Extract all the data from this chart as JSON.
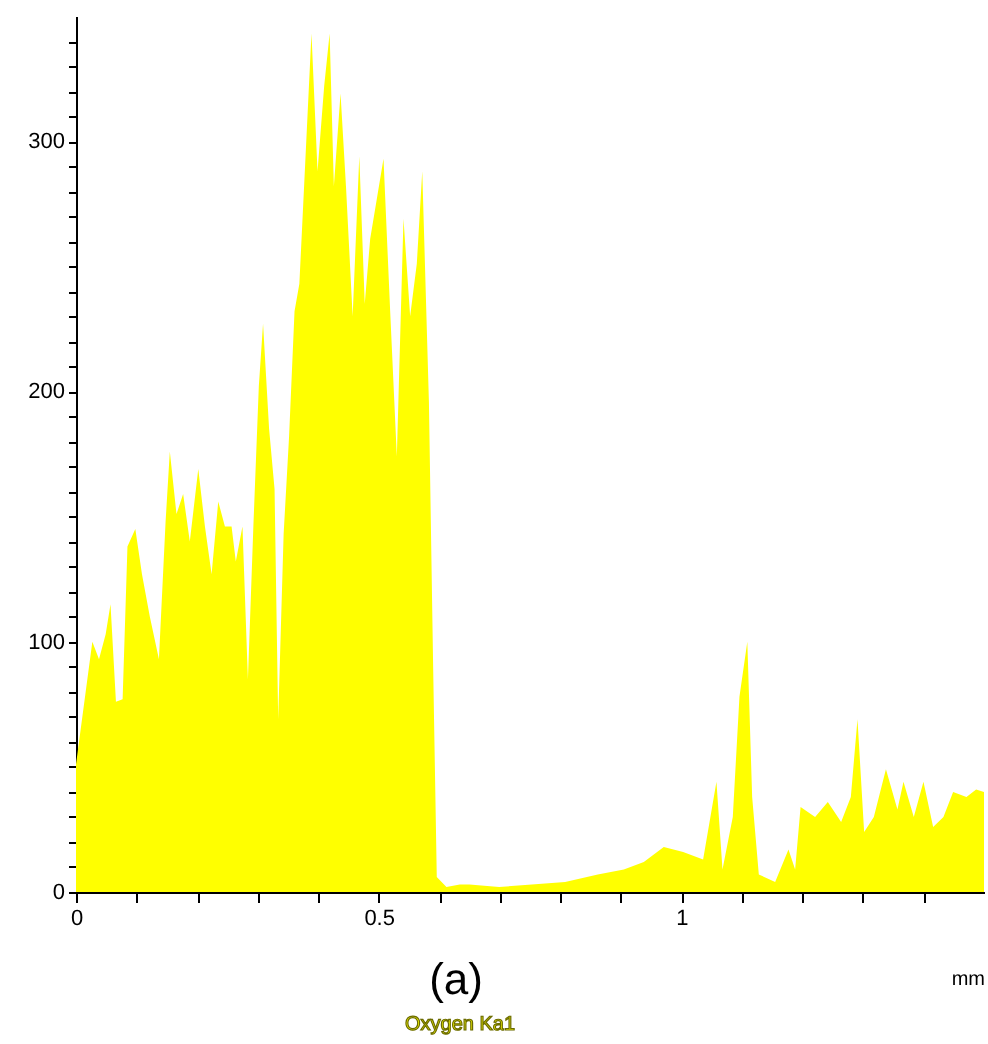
{
  "chart_data": {
    "type": "area",
    "xlabel": "mm",
    "annotations": [
      "(a)"
    ],
    "x": [
      0,
      0.016,
      0.027,
      0.038,
      0.049,
      0.057,
      0.066,
      0.077,
      0.085,
      0.098,
      0.109,
      0.122,
      0.137,
      0.148,
      0.155,
      0.166,
      0.177,
      0.188,
      0.202,
      0.213,
      0.224,
      0.235,
      0.246,
      0.257,
      0.264,
      0.275,
      0.284,
      0.293,
      0.302,
      0.309,
      0.319,
      0.328,
      0.334,
      0.343,
      0.352,
      0.361,
      0.369,
      0.38,
      0.389,
      0.399,
      0.41,
      0.419,
      0.426,
      0.437,
      0.446,
      0.457,
      0.468,
      0.477,
      0.486,
      0.497,
      0.508,
      0.519,
      0.53,
      0.541,
      0.552,
      0.563,
      0.572,
      0.583,
      0.59,
      0.596,
      0.612,
      0.634,
      0.65,
      0.699,
      0.753,
      0.808,
      0.862,
      0.905,
      0.938,
      0.971,
      1.003,
      1.036,
      1.058,
      1.068,
      1.085,
      1.096,
      1.109,
      1.117,
      1.128,
      1.155,
      1.177,
      1.188,
      1.197,
      1.221,
      1.242,
      1.264,
      1.28,
      1.291,
      1.302,
      1.318,
      1.338,
      1.357,
      1.367,
      1.384,
      1.4,
      1.416,
      1.433,
      1.449,
      1.471,
      1.487,
      1.5
    ],
    "series": [
      {
        "name": "Oxygen Ka1",
        "color": "#ffff00",
        "values": [
          51,
          80,
          100,
          93,
          103,
          115,
          76,
          77,
          138,
          145,
          127,
          110,
          93,
          148,
          176,
          151,
          159,
          140,
          169,
          146,
          127,
          156,
          146,
          146,
          132,
          146,
          85,
          146,
          202,
          227,
          185,
          161,
          69,
          143,
          182,
          232,
          243,
          298,
          343,
          288,
          322,
          343,
          282,
          319,
          282,
          230,
          294,
          235,
          261,
          277,
          293,
          232,
          174,
          269,
          230,
          251,
          288,
          196,
          90,
          6,
          2,
          3,
          3,
          2,
          3,
          4,
          7,
          9,
          12,
          18,
          16,
          13,
          44,
          9,
          30,
          78,
          100,
          38,
          7,
          4,
          17,
          9,
          34,
          30,
          36,
          28,
          38,
          69,
          24,
          30,
          49,
          33,
          44,
          30,
          44,
          26,
          30,
          40,
          38,
          41,
          40
        ]
      }
    ],
    "xlim": [
      0,
      1.5
    ],
    "ylim": [
      0,
      350
    ],
    "xticks": [
      0,
      {
        "value": 0.1,
        "label": null
      },
      {
        "value": 0.2,
        "label": null
      },
      {
        "value": 0.3,
        "label": null
      },
      {
        "value": 0.4,
        "label": null
      },
      0.5,
      {
        "value": 0.6,
        "label": null
      },
      {
        "value": 0.7,
        "label": null
      },
      {
        "value": 0.8,
        "label": null
      },
      {
        "value": 0.9,
        "label": null
      },
      1,
      {
        "value": 1.1,
        "label": null
      },
      {
        "value": 1.2,
        "label": null
      },
      {
        "value": 1.3,
        "label": null
      },
      {
        "value": 1.4,
        "label": null
      }
    ],
    "yticks": [
      0,
      {
        "value": 10,
        "label": null
      },
      {
        "value": 20,
        "label": null
      },
      {
        "value": 30,
        "label": null
      },
      {
        "value": 40,
        "label": null
      },
      {
        "value": 50,
        "label": null
      },
      {
        "value": 60,
        "label": null
      },
      {
        "value": 70,
        "label": null
      },
      {
        "value": 80,
        "label": null
      },
      {
        "value": 90,
        "label": null
      },
      100,
      {
        "value": 110,
        "label": null
      },
      {
        "value": 120,
        "label": null
      },
      {
        "value": 130,
        "label": null
      },
      {
        "value": 140,
        "label": null
      },
      {
        "value": 150,
        "label": null
      },
      {
        "value": 160,
        "label": null
      },
      {
        "value": 170,
        "label": null
      },
      {
        "value": 180,
        "label": null
      },
      {
        "value": 190,
        "label": null
      },
      200,
      {
        "value": 210,
        "label": null
      },
      {
        "value": 220,
        "label": null
      },
      {
        "value": 230,
        "label": null
      },
      {
        "value": 240,
        "label": null
      },
      {
        "value": 250,
        "label": null
      },
      {
        "value": 260,
        "label": null
      },
      {
        "value": 270,
        "label": null
      },
      {
        "value": 280,
        "label": null
      },
      {
        "value": 290,
        "label": null
      },
      300,
      {
        "value": 310,
        "label": null
      },
      {
        "value": 320,
        "label": null
      },
      {
        "value": 330,
        "label": null
      },
      {
        "value": 340,
        "label": null
      }
    ]
  }
}
